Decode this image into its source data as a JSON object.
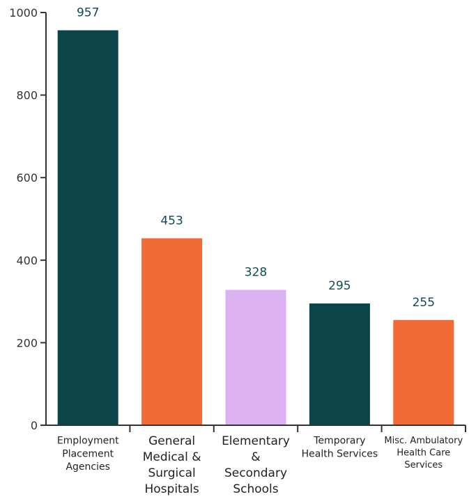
{
  "chart_data": {
    "type": "bar",
    "categories": [
      [
        "Employment",
        "Placement",
        "Agencies"
      ],
      [
        "General",
        "Medical &",
        "Surgical",
        "Hospitals"
      ],
      [
        "Elementary",
        "&",
        "Secondary",
        "Schools"
      ],
      [
        "Temporary",
        "Health Services"
      ],
      [
        "Misc. Ambulatory",
        "Health Care",
        "Services"
      ]
    ],
    "values": [
      957,
      453,
      328,
      295,
      255
    ],
    "value_labels": [
      "957",
      "453",
      "328",
      "295",
      "255"
    ],
    "colors": [
      "#0b4549",
      "#f26a35",
      "#dcb2f2",
      "#0b4549",
      "#f26a35"
    ],
    "category_font_sizes": [
      14,
      17,
      17,
      14,
      13
    ],
    "ylim": [
      0,
      1000
    ],
    "yticks": [
      0,
      200,
      400,
      600,
      800,
      1000
    ],
    "ytick_labels": [
      "0",
      "200",
      "400",
      "600",
      "800",
      "1000"
    ],
    "title": "",
    "xlabel": "",
    "ylabel": "",
    "grid": false
  }
}
